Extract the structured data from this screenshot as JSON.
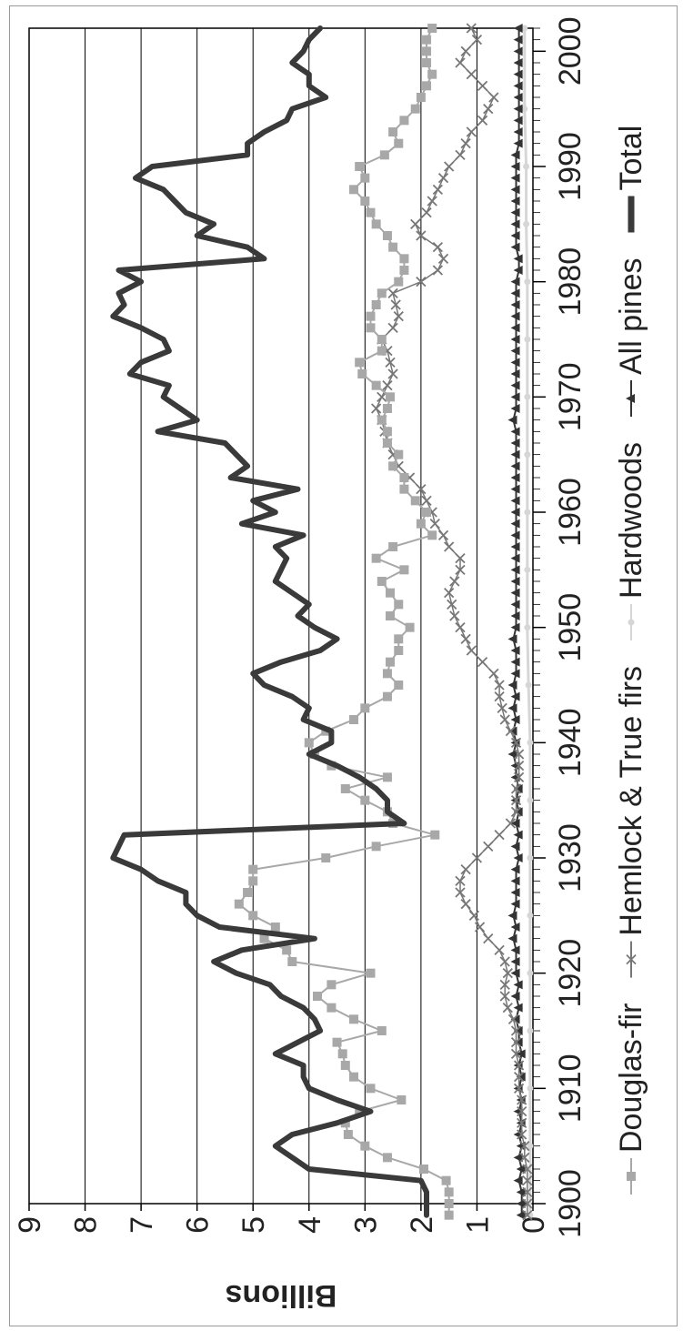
{
  "chart_data": {
    "type": "line",
    "title": "",
    "xlabel": "",
    "ylabel": "Billions",
    "xlim": [
      1900,
      2002
    ],
    "ylim": [
      0,
      9
    ],
    "x_ticks": [
      "1900",
      "1910",
      "1920",
      "1930",
      "1940",
      "1950",
      "1960",
      "1970",
      "1980",
      "1990",
      "2000"
    ],
    "y_ticks": [
      "0",
      "1",
      "2",
      "3",
      "4",
      "5",
      "6",
      "7",
      "8",
      "9"
    ],
    "grid": "horizontal",
    "legend_position": "bottom",
    "series": [
      {
        "name": "Douglas-fir",
        "color": "#a8a8a8",
        "marker": "square",
        "x": [
          1899,
          1900,
          1901,
          1902,
          1903,
          1904,
          1905,
          1906,
          1907,
          1908,
          1909,
          1910,
          1911,
          1912,
          1913,
          1914,
          1915,
          1916,
          1917,
          1918,
          1919,
          1920,
          1921,
          1922,
          1923,
          1924,
          1925,
          1926,
          1927,
          1928,
          1929,
          1930,
          1931,
          1932,
          1933,
          1934,
          1935,
          1936,
          1937,
          1938,
          1939,
          1940,
          1941,
          1942,
          1943,
          1944,
          1945,
          1946,
          1947,
          1948,
          1949,
          1950,
          1951,
          1952,
          1953,
          1954,
          1955,
          1956,
          1957,
          1958,
          1959,
          1960,
          1961,
          1962,
          1963,
          1964,
          1965,
          1966,
          1967,
          1968,
          1969,
          1970,
          1971,
          1972,
          1973,
          1974,
          1975,
          1976,
          1977,
          1978,
          1979,
          1980,
          1981,
          1982,
          1983,
          1984,
          1985,
          1986,
          1987,
          1988,
          1989,
          1990,
          1991,
          1992,
          1993,
          1994,
          1995,
          1996,
          1997,
          1998,
          1999,
          2000,
          2001,
          2002
        ],
        "values": [
          1.5,
          1.5,
          1.5,
          1.55,
          1.95,
          2.6,
          3.0,
          3.3,
          3.35,
          3.1,
          2.35,
          2.9,
          3.2,
          3.35,
          3.4,
          3.5,
          2.7,
          3.2,
          3.6,
          3.85,
          3.6,
          2.9,
          4.3,
          4.4,
          4.8,
          4.6,
          5.0,
          5.25,
          5.1,
          5.0,
          5.0,
          3.7,
          2.8,
          1.75,
          2.5,
          2.6,
          3.0,
          3.35,
          2.6,
          3.6,
          3.9,
          4.0,
          3.7,
          3.2,
          3.0,
          2.6,
          2.4,
          2.6,
          2.55,
          2.4,
          2.4,
          2.2,
          2.55,
          2.4,
          2.55,
          2.7,
          2.3,
          2.8,
          2.5,
          1.8,
          2.0,
          1.9,
          2.1,
          2.3,
          2.3,
          2.5,
          2.4,
          2.6,
          2.6,
          2.7,
          2.6,
          2.55,
          2.8,
          3.05,
          3.1,
          2.7,
          2.7,
          2.9,
          2.9,
          2.8,
          2.7,
          2.4,
          2.3,
          2.3,
          2.5,
          2.6,
          2.8,
          2.9,
          3.0,
          3.2,
          3.0,
          3.1,
          2.65,
          2.4,
          2.5,
          2.3,
          2.1,
          2.0,
          1.9,
          1.8,
          1.9,
          1.9,
          1.9,
          1.8
        ]
      },
      {
        "name": "Hemlock & True firs",
        "color": "#777777",
        "marker": "x",
        "x": [
          1899,
          1900,
          1901,
          1902,
          1903,
          1904,
          1905,
          1906,
          1907,
          1908,
          1909,
          1910,
          1911,
          1912,
          1913,
          1914,
          1915,
          1916,
          1917,
          1918,
          1919,
          1920,
          1921,
          1922,
          1923,
          1924,
          1925,
          1926,
          1927,
          1928,
          1929,
          1930,
          1931,
          1932,
          1933,
          1934,
          1935,
          1936,
          1937,
          1938,
          1939,
          1940,
          1941,
          1942,
          1943,
          1944,
          1945,
          1946,
          1947,
          1948,
          1949,
          1950,
          1951,
          1952,
          1953,
          1954,
          1955,
          1956,
          1957,
          1958,
          1959,
          1960,
          1961,
          1962,
          1963,
          1964,
          1965,
          1966,
          1967,
          1968,
          1969,
          1970,
          1971,
          1972,
          1973,
          1974,
          1975,
          1976,
          1977,
          1978,
          1979,
          1980,
          1981,
          1982,
          1983,
          1984,
          1985,
          1986,
          1987,
          1988,
          1989,
          1990,
          1991,
          1992,
          1993,
          1994,
          1995,
          1996,
          1997,
          1998,
          1999,
          2000,
          2001,
          2002
        ],
        "values": [
          0.1,
          0.1,
          0.1,
          0.1,
          0.1,
          0.15,
          0.15,
          0.2,
          0.2,
          0.2,
          0.2,
          0.25,
          0.25,
          0.25,
          0.3,
          0.3,
          0.3,
          0.35,
          0.45,
          0.5,
          0.5,
          0.45,
          0.5,
          0.6,
          0.8,
          0.95,
          1.05,
          1.2,
          1.3,
          1.3,
          1.2,
          1.0,
          0.8,
          0.6,
          0.4,
          0.3,
          0.3,
          0.3,
          0.25,
          0.25,
          0.25,
          0.3,
          0.4,
          0.5,
          0.55,
          0.6,
          0.6,
          0.7,
          0.9,
          1.1,
          1.2,
          1.3,
          1.4,
          1.45,
          1.5,
          1.4,
          1.3,
          1.3,
          1.5,
          1.6,
          1.75,
          1.8,
          1.9,
          2.0,
          2.2,
          2.4,
          2.5,
          2.6,
          2.65,
          2.7,
          2.8,
          2.7,
          2.6,
          2.5,
          2.55,
          2.6,
          2.7,
          2.5,
          2.4,
          2.45,
          2.5,
          2.0,
          1.7,
          1.6,
          1.7,
          2.0,
          2.1,
          1.9,
          1.8,
          1.7,
          1.6,
          1.5,
          1.3,
          1.2,
          1.1,
          0.9,
          0.8,
          0.7,
          0.9,
          1.1,
          1.3,
          1.2,
          1.0,
          1.1
        ]
      },
      {
        "name": "Hardwoods",
        "color": "#d6d6d6",
        "marker": "circle",
        "x": [
          1899,
          1905,
          1910,
          1915,
          1920,
          1925,
          1930,
          1935,
          1940,
          1945,
          1950,
          1955,
          1960,
          1965,
          1970,
          1975,
          1980,
          1985,
          1990,
          1995,
          2002
        ],
        "values": [
          0.05,
          0.05,
          0.05,
          0.05,
          0.05,
          0.05,
          0.05,
          0.05,
          0.05,
          0.08,
          0.1,
          0.1,
          0.1,
          0.1,
          0.1,
          0.1,
          0.1,
          0.12,
          0.12,
          0.15,
          0.15
        ]
      },
      {
        "name": "All pines",
        "color": "#333333",
        "marker": "triangle",
        "x": [
          1899,
          1900,
          1901,
          1902,
          1903,
          1904,
          1905,
          1906,
          1907,
          1908,
          1909,
          1910,
          1911,
          1912,
          1913,
          1914,
          1915,
          1916,
          1917,
          1918,
          1919,
          1920,
          1921,
          1922,
          1923,
          1924,
          1925,
          1926,
          1927,
          1928,
          1929,
          1930,
          1931,
          1932,
          1933,
          1934,
          1935,
          1936,
          1937,
          1938,
          1939,
          1940,
          1941,
          1942,
          1943,
          1944,
          1945,
          1946,
          1947,
          1948,
          1949,
          1950,
          1951,
          1952,
          1953,
          1954,
          1955,
          1956,
          1957,
          1958,
          1959,
          1960,
          1961,
          1962,
          1963,
          1964,
          1965,
          1966,
          1967,
          1968,
          1969,
          1970,
          1971,
          1972,
          1973,
          1974,
          1975,
          1976,
          1977,
          1978,
          1979,
          1980,
          1981,
          1982,
          1983,
          1984,
          1985,
          1986,
          1987,
          1988,
          1989,
          1990,
          1991,
          1992,
          1993,
          1994,
          1995,
          1996,
          1997,
          1998,
          1999,
          2000,
          2001,
          2002
        ],
        "values": [
          0.2,
          0.2,
          0.2,
          0.25,
          0.2,
          0.25,
          0.2,
          0.25,
          0.2,
          0.25,
          0.2,
          0.25,
          0.2,
          0.25,
          0.2,
          0.25,
          0.25,
          0.3,
          0.25,
          0.3,
          0.25,
          0.3,
          0.3,
          0.3,
          0.35,
          0.3,
          0.35,
          0.3,
          0.3,
          0.3,
          0.3,
          0.25,
          0.3,
          0.25,
          0.3,
          0.25,
          0.3,
          0.25,
          0.3,
          0.3,
          0.35,
          0.3,
          0.35,
          0.3,
          0.35,
          0.3,
          0.35,
          0.3,
          0.3,
          0.3,
          0.35,
          0.3,
          0.3,
          0.3,
          0.3,
          0.3,
          0.3,
          0.3,
          0.3,
          0.3,
          0.3,
          0.3,
          0.3,
          0.3,
          0.3,
          0.3,
          0.3,
          0.3,
          0.3,
          0.35,
          0.3,
          0.3,
          0.3,
          0.3,
          0.3,
          0.3,
          0.3,
          0.3,
          0.3,
          0.3,
          0.3,
          0.3,
          0.25,
          0.25,
          0.3,
          0.3,
          0.3,
          0.3,
          0.3,
          0.3,
          0.3,
          0.3,
          0.3,
          0.25,
          0.25,
          0.25,
          0.25,
          0.25,
          0.25,
          0.25,
          0.25,
          0.25,
          0.25,
          0.25
        ]
      },
      {
        "name": "Total",
        "color": "#3a3a3a",
        "marker": "none",
        "x": [
          1899,
          1900,
          1901,
          1902,
          1903,
          1904,
          1905,
          1906,
          1907,
          1908,
          1909,
          1910,
          1911,
          1912,
          1913,
          1914,
          1915,
          1916,
          1917,
          1918,
          1919,
          1920,
          1921,
          1922,
          1923,
          1924,
          1925,
          1926,
          1927,
          1928,
          1929,
          1930,
          1931,
          1932,
          1933,
          1934,
          1935,
          1936,
          1937,
          1938,
          1939,
          1940,
          1941,
          1942,
          1943,
          1944,
          1945,
          1946,
          1947,
          1948,
          1949,
          1950,
          1951,
          1952,
          1953,
          1954,
          1955,
          1956,
          1957,
          1958,
          1959,
          1960,
          1961,
          1962,
          1963,
          1964,
          1965,
          1966,
          1967,
          1968,
          1969,
          1970,
          1971,
          1972,
          1973,
          1974,
          1975,
          1976,
          1977,
          1978,
          1979,
          1980,
          1981,
          1982,
          1983,
          1984,
          1985,
          1986,
          1987,
          1988,
          1989,
          1990,
          1991,
          1992,
          1993,
          1994,
          1995,
          1996,
          1997,
          1998,
          1999,
          2000,
          2001,
          2002
        ],
        "values": [
          1.9,
          1.9,
          1.9,
          2.0,
          4.0,
          4.3,
          4.6,
          4.3,
          3.5,
          2.9,
          3.5,
          4.0,
          4.1,
          4.1,
          4.6,
          4.2,
          3.8,
          3.9,
          4.1,
          4.5,
          4.7,
          5.3,
          5.7,
          5.2,
          3.9,
          5.6,
          6.0,
          6.2,
          6.2,
          6.7,
          7.0,
          7.5,
          7.4,
          7.3,
          2.3,
          2.6,
          2.6,
          2.8,
          3.1,
          3.5,
          4.0,
          3.6,
          3.6,
          4.1,
          4.0,
          4.3,
          4.8,
          5.0,
          4.5,
          3.8,
          3.5,
          3.9,
          4.2,
          4.0,
          4.3,
          4.6,
          4.5,
          4.4,
          4.6,
          4.1,
          5.2,
          4.6,
          5.0,
          4.2,
          5.4,
          5.1,
          5.3,
          5.5,
          6.7,
          6.0,
          6.3,
          6.6,
          6.5,
          7.2,
          7.0,
          6.5,
          6.6,
          7.0,
          7.5,
          7.3,
          7.4,
          7.0,
          7.4,
          4.8,
          5.1,
          6.0,
          5.7,
          6.2,
          6.4,
          6.6,
          7.1,
          6.8,
          5.1,
          5.1,
          4.8,
          4.4,
          4.3,
          3.7,
          4.0,
          4.0,
          4.3,
          4.1,
          4.0,
          3.8
        ]
      }
    ]
  }
}
